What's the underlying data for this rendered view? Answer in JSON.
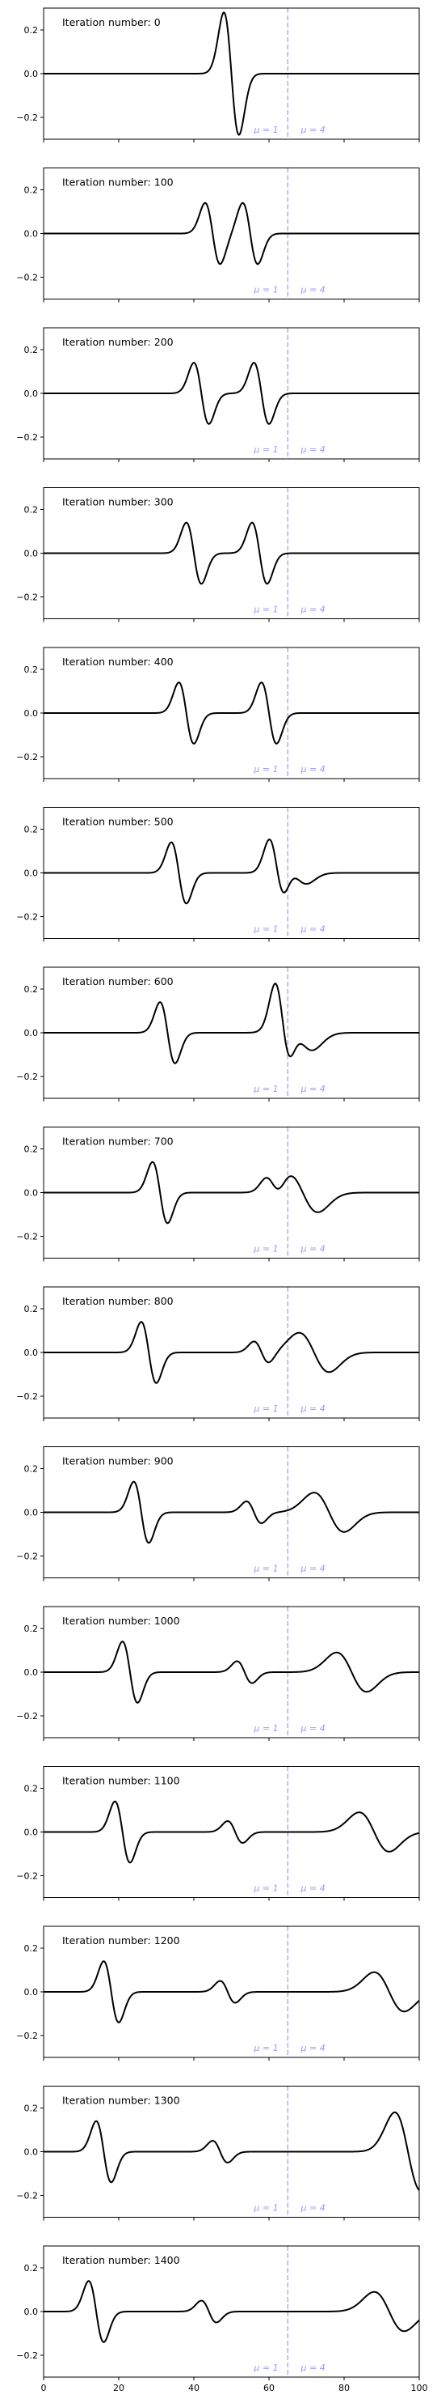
{
  "chart_data": {
    "type": "line",
    "layout": "vertical-stack",
    "xlim": [
      0,
      100
    ],
    "ylim": [
      -0.3,
      0.3
    ],
    "x_ticks": [
      0,
      20,
      40,
      60,
      80,
      100
    ],
    "y_ticks": [
      -0.2,
      0.0,
      0.2
    ],
    "x_tick_labels": [
      "0",
      "20",
      "40",
      "60",
      "80",
      "100"
    ],
    "y_tick_labels": [
      "−0.2",
      "0.0",
      "0.2"
    ],
    "x_tick_labels_only_on_last_panel": true,
    "divider": {
      "x": 65,
      "style": "dashed",
      "color": "#9a9af5"
    },
    "region_labels": [
      {
        "text": "μ = 1",
        "x": 62.5,
        "align": "right"
      },
      {
        "text": "μ = 4",
        "x": 68.5,
        "align": "left"
      }
    ],
    "line_color": "#000000",
    "panels": [
      {
        "title": "Iteration number: 0",
        "wave_packets": [
          {
            "center": 50,
            "amplitude": 0.28,
            "width": 2.0
          }
        ]
      },
      {
        "title": "Iteration number: 100",
        "wave_packets": [
          {
            "center": 45,
            "amplitude": 0.14,
            "width": 2.0
          },
          {
            "center": 55,
            "amplitude": 0.14,
            "width": 2.0
          }
        ]
      },
      {
        "title": "Iteration number: 200",
        "wave_packets": [
          {
            "center": 42,
            "amplitude": 0.14,
            "width": 2.0
          },
          {
            "center": 58,
            "amplitude": 0.14,
            "width": 2.0
          }
        ]
      },
      {
        "title": "Iteration number: 300",
        "wave_packets": [
          {
            "center": 40,
            "amplitude": 0.14,
            "width": 2.0
          },
          {
            "center": 57.5,
            "amplitude": 0.14,
            "width": 2.0
          }
        ]
      },
      {
        "title": "Iteration number: 400",
        "wave_packets": [
          {
            "center": 38,
            "amplitude": 0.14,
            "width": 2.0
          },
          {
            "center": 60,
            "amplitude": 0.14,
            "width": 2.0
          }
        ]
      },
      {
        "title": "Iteration number: 500",
        "wave_packets": [
          {
            "center": 36,
            "amplitude": 0.14,
            "width": 2.0
          },
          {
            "center": 62,
            "amplitude": 0.14,
            "width": 2.0
          },
          {
            "center": 67,
            "amplitude": 0.05,
            "width": 3.0
          }
        ]
      },
      {
        "title": "Iteration number: 600",
        "wave_packets": [
          {
            "center": 33,
            "amplitude": 0.14,
            "width": 2.0
          },
          {
            "center": 63.5,
            "amplitude": 0.18,
            "width": 2.0
          },
          {
            "center": 68,
            "amplitude": 0.08,
            "width": 3.5
          }
        ]
      },
      {
        "title": "Iteration number: 700",
        "wave_packets": [
          {
            "center": 31,
            "amplitude": 0.14,
            "width": 2.0
          },
          {
            "center": 61,
            "amplitude": 0.05,
            "width": 2.0
          },
          {
            "center": 69,
            "amplitude": 0.09,
            "width": 4.0
          }
        ]
      },
      {
        "title": "Iteration number: 800",
        "wave_packets": [
          {
            "center": 28,
            "amplitude": 0.14,
            "width": 2.0
          },
          {
            "center": 58,
            "amplitude": 0.05,
            "width": 2.0
          },
          {
            "center": 72,
            "amplitude": 0.09,
            "width": 4.0
          }
        ]
      },
      {
        "title": "Iteration number: 900",
        "wave_packets": [
          {
            "center": 26,
            "amplitude": 0.14,
            "width": 2.0
          },
          {
            "center": 56,
            "amplitude": 0.05,
            "width": 2.0
          },
          {
            "center": 76,
            "amplitude": 0.09,
            "width": 4.0
          }
        ]
      },
      {
        "title": "Iteration number: 1000",
        "wave_packets": [
          {
            "center": 23,
            "amplitude": 0.14,
            "width": 2.0
          },
          {
            "center": 53.5,
            "amplitude": 0.05,
            "width": 2.0
          },
          {
            "center": 82,
            "amplitude": 0.09,
            "width": 4.0
          }
        ]
      },
      {
        "title": "Iteration number: 1100",
        "wave_packets": [
          {
            "center": 21,
            "amplitude": 0.14,
            "width": 2.0
          },
          {
            "center": 51,
            "amplitude": 0.05,
            "width": 2.0
          },
          {
            "center": 88,
            "amplitude": 0.09,
            "width": 4.0
          }
        ]
      },
      {
        "title": "Iteration number: 1200",
        "wave_packets": [
          {
            "center": 18,
            "amplitude": 0.14,
            "width": 2.0
          },
          {
            "center": 49,
            "amplitude": 0.05,
            "width": 2.0
          },
          {
            "center": 92,
            "amplitude": 0.09,
            "width": 4.0
          }
        ]
      },
      {
        "title": "Iteration number: 1300",
        "wave_packets": [
          {
            "center": 16,
            "amplitude": 0.14,
            "width": 2.0
          },
          {
            "center": 47,
            "amplitude": 0.05,
            "width": 2.0
          },
          {
            "center": 97,
            "amplitude": 0.18,
            "width": 3.5
          }
        ]
      },
      {
        "title": "Iteration number: 1400",
        "wave_packets": [
          {
            "center": 14,
            "amplitude": 0.14,
            "width": 2.0
          },
          {
            "center": 44,
            "amplitude": 0.05,
            "width": 2.0
          },
          {
            "center": 92,
            "amplitude": 0.09,
            "width": 4.0
          }
        ]
      }
    ]
  }
}
